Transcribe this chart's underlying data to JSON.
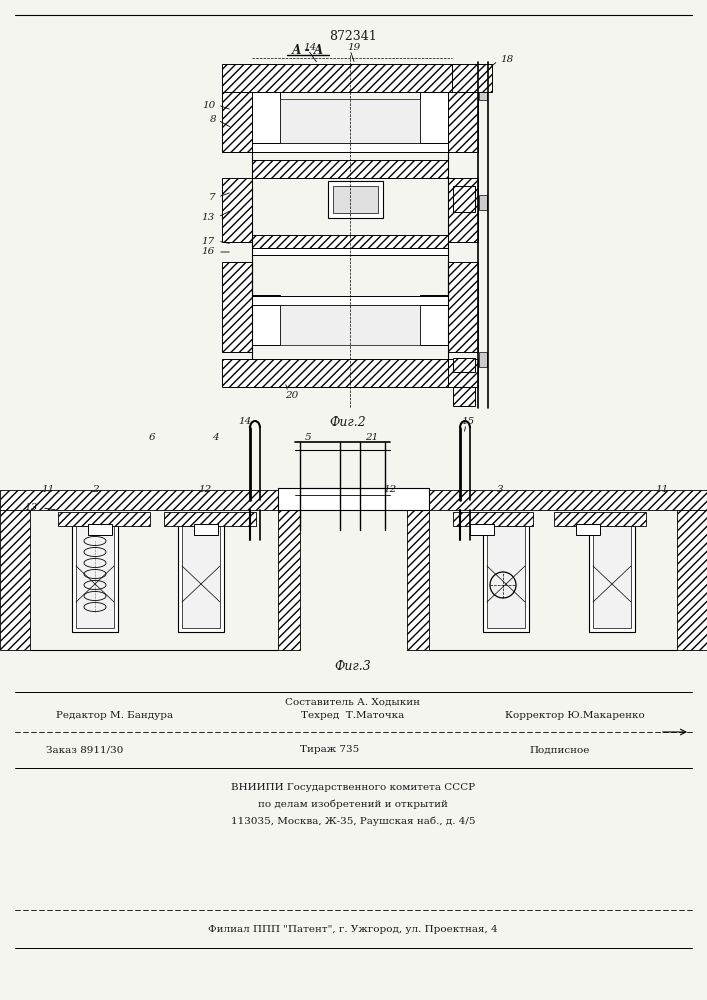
{
  "patent_number": "872341",
  "fig2_label": "Фиг.2",
  "fig3_label": "Фиг.3",
  "aa_label": "А - А",
  "bg_color": "#f5f5f0",
  "text_color": "#1a1a1a",
  "footer": {
    "line1_left": "Редактор М. Бандура",
    "line1_center_top": "Составитель А. Ходыкин",
    "line1_center_bot": "Техред  Т.Маточка",
    "line1_right": "Корректор Ю.Макаренко",
    "line2_col1": "Заказ 8911/30",
    "line2_col2": "Тираж 735",
    "line2_col3": "Подписное",
    "line3": "ВНИИПИ Государственного комитета СССР",
    "line4": "по делам изобретений и открытий",
    "line5": "113035, Москва, Ж-35, Раушская наб., д. 4/5",
    "line6": "Филиал ППП \"Патент\", г. Ужгород, ул. Проектная, 4"
  }
}
